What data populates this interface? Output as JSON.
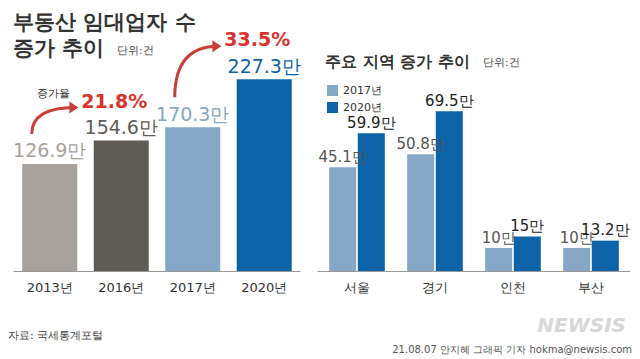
{
  "chart_data": [
    {
      "type": "bar",
      "title": "부동산 임대업자 수\n증가 추이",
      "subtitle": "단위:건",
      "categories": [
        "2013년",
        "2016년",
        "2017년",
        "2020년"
      ],
      "values": [
        126.9,
        154.6,
        170.3,
        227.3
      ],
      "value_labels": [
        "126.9만",
        "154.6만",
        "170.3만",
        "227.3만"
      ],
      "colors": [
        "#a7a29d",
        "#5f5b57",
        "#86a7c6",
        "#0d63a8"
      ],
      "data_labels": true,
      "tick_labels": "x",
      "grid": false,
      "annotations": [
        {
          "label": "증가율",
          "from": "2013년",
          "to": "2016년",
          "value": 21.8,
          "value_label": "21.8%"
        },
        {
          "from": "2017년",
          "to": "2020년",
          "value": 33.5,
          "value_label": "33.5%"
        }
      ]
    },
    {
      "type": "bar",
      "title": "주요 지역 증가 추이",
      "subtitle": "단위:건",
      "categories": [
        "서울",
        "경기",
        "인천",
        "부산"
      ],
      "series": [
        {
          "name": "2017년",
          "color": "#86a7c6",
          "values": [
            45.1,
            50.8,
            10,
            10
          ],
          "value_labels": [
            "45.1만",
            "50.8만",
            "10만",
            "10만"
          ]
        },
        {
          "name": "2020년",
          "color": "#0d63a8",
          "values": [
            59.9,
            69.5,
            15,
            13.2
          ],
          "value_labels": [
            "59.9만",
            "69.5만",
            "15만",
            "13.2만"
          ]
        }
      ],
      "legend": "top-left",
      "data_labels": true,
      "tick_labels": "x",
      "grid": false
    }
  ],
  "source": "자료: 국세통계포털",
  "credit": "21.08.07 안지혜 그래픽 기자 hokma@newsis.com",
  "watermark": "NEWSIS"
}
